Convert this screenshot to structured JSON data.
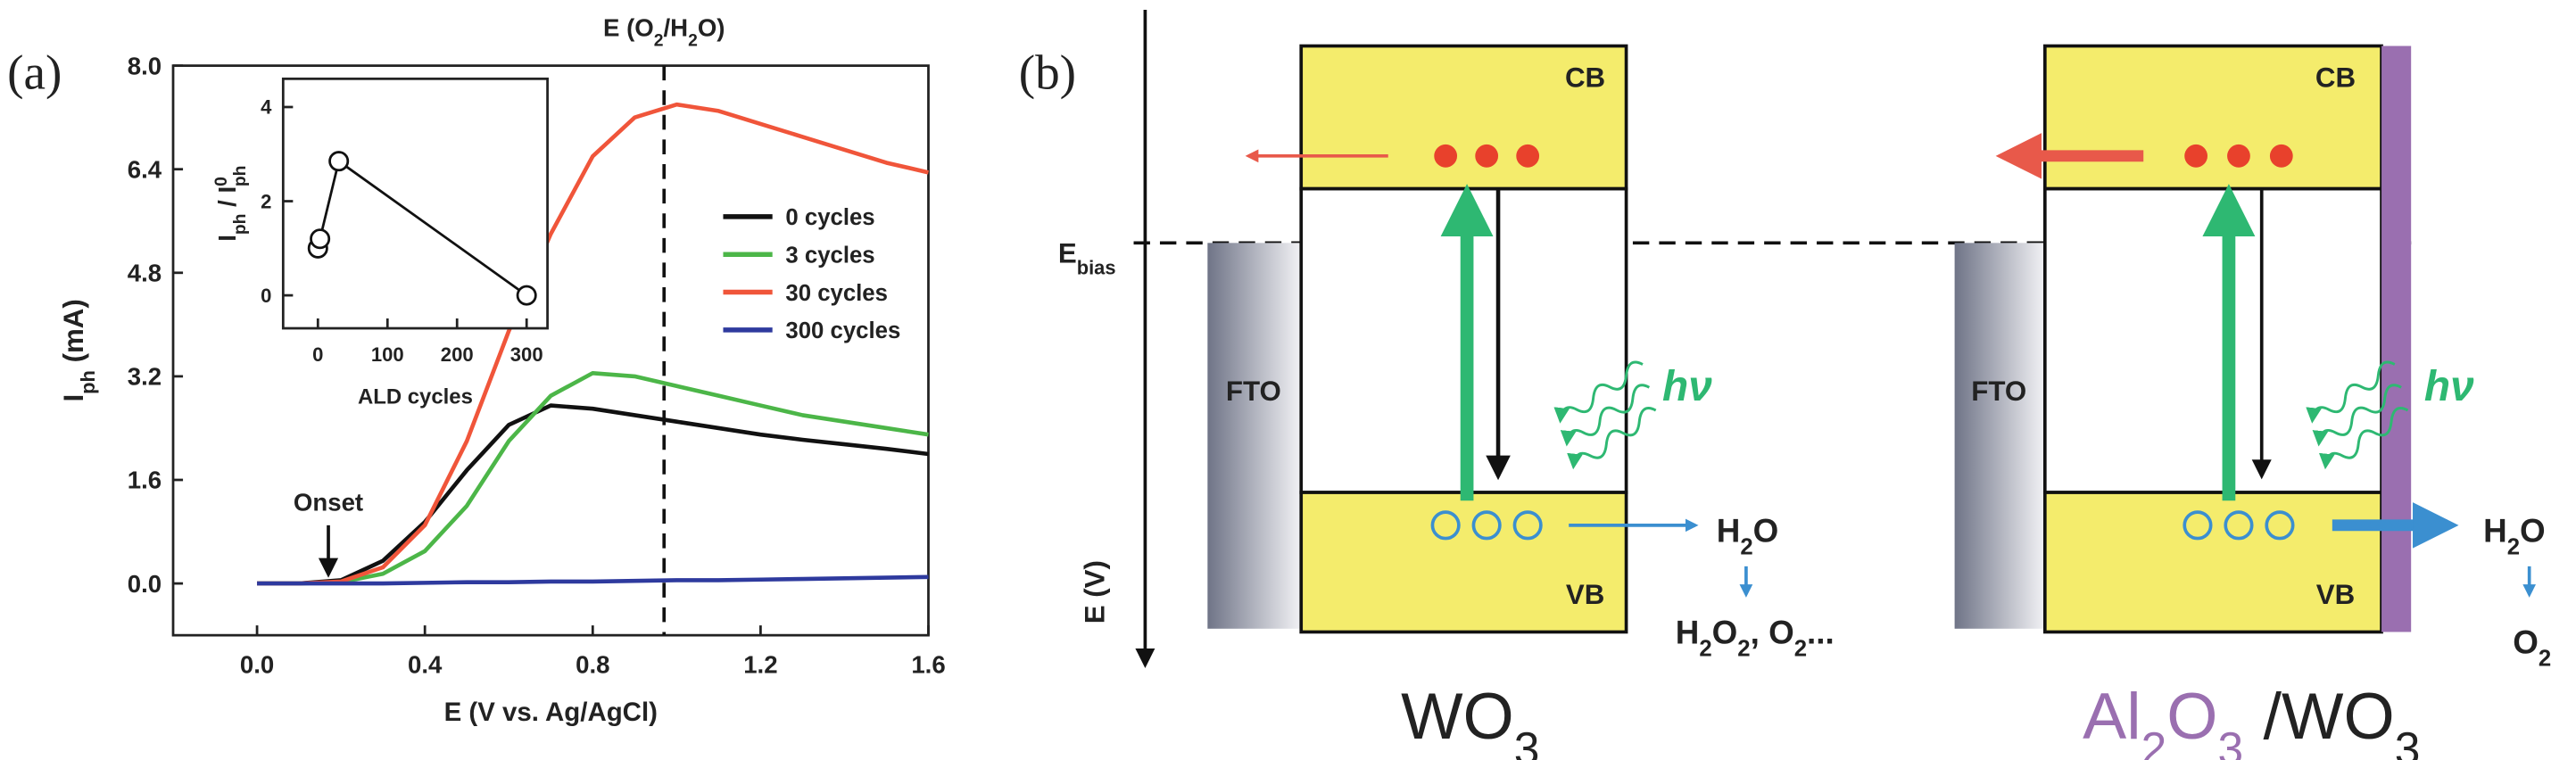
{
  "panel_labels": [
    "(a)",
    "(b)"
  ],
  "chart_data": [
    {
      "type": "line",
      "xlabel": "E (V vs. Ag/AgCl)",
      "ylabel": [
        "I",
        "ph",
        " (mA)"
      ],
      "x": [
        0,
        0.1,
        0.2,
        0.3,
        0.4,
        0.5,
        0.6,
        0.7,
        0.8,
        0.9,
        1.0,
        1.1,
        1.2,
        1.3,
        1.4,
        1.5,
        1.6
      ],
      "series": [
        {
          "name": "0 cycles",
          "color": "#111111",
          "values": [
            0,
            0,
            0.05,
            0.35,
            0.95,
            1.75,
            2.45,
            2.75,
            2.7,
            2.6,
            2.5,
            2.4,
            2.3,
            2.22,
            2.15,
            2.08,
            2.0
          ]
        },
        {
          "name": "3 cycles",
          "color": "#4cb648",
          "values": [
            0,
            0,
            0.02,
            0.15,
            0.5,
            1.2,
            2.2,
            2.9,
            3.25,
            3.2,
            3.05,
            2.9,
            2.75,
            2.6,
            2.5,
            2.4,
            2.3
          ]
        },
        {
          "name": "30 cycles",
          "color": "#f0553a",
          "values": [
            0,
            0,
            0.03,
            0.25,
            0.9,
            2.2,
            3.9,
            5.4,
            6.6,
            7.2,
            7.4,
            7.3,
            7.1,
            6.9,
            6.7,
            6.5,
            6.35
          ]
        },
        {
          "name": "300 cycles",
          "color": "#2e3a9e",
          "values": [
            0,
            0,
            0,
            0,
            0.01,
            0.02,
            0.02,
            0.03,
            0.03,
            0.04,
            0.05,
            0.05,
            0.06,
            0.07,
            0.08,
            0.09,
            0.1
          ]
        }
      ],
      "xlim": [
        -0.2,
        1.6
      ],
      "xticks": [
        {
          "value": 0,
          "label": "0.0"
        },
        0.4,
        0.8,
        1.2,
        1.6
      ],
      "ylim": [
        -0.8,
        8.0
      ],
      "yticks": [
        {
          "value": 0,
          "label": "0.0"
        },
        1.6,
        3.2,
        4.8,
        6.4,
        {
          "value": 8,
          "label": "8.0"
        }
      ],
      "annotations": [
        {
          "text": [
            "E (O",
            "2",
            "/H",
            "2",
            "O)"
          ],
          "x": 0.97
        },
        {
          "text": "Onset",
          "x": 0.17
        }
      ],
      "legend": "right"
    },
    {
      "type": "line",
      "xlabel": "ALD cycles",
      "ylabel": [
        "I",
        "ph",
        " / I",
        "ph"
      ],
      "ylabel_sup": "0",
      "x": [
        0,
        3,
        30,
        300
      ],
      "values": [
        1.0,
        1.2,
        2.85,
        0
      ],
      "color": "#111111",
      "markers": true,
      "xlim": [
        -50,
        330
      ],
      "xticks": [
        0,
        100,
        200,
        300
      ],
      "ylim": [
        -0.7,
        4.6
      ],
      "yticks": [
        0,
        2,
        4
      ]
    }
  ],
  "diagram": {
    "axis_label": "E (V)",
    "bias_label": [
      "E",
      "bias"
    ],
    "left": {
      "cb": "CB",
      "vb": "VB",
      "fto": "FTO",
      "photon": "hν",
      "water": [
        "H",
        "2",
        "O"
      ],
      "products": [
        "H",
        "2",
        "O",
        "2",
        ", O",
        "2",
        "..."
      ],
      "name": [
        "WO",
        "3"
      ]
    },
    "right": {
      "cb": "CB",
      "vb": "VB",
      "fto": "FTO",
      "photon": "hν",
      "water": [
        "H",
        "2",
        "O"
      ],
      "products": [
        "O",
        "2"
      ],
      "name_a": [
        "Al",
        "2",
        "O",
        "3"
      ],
      "name_b": [
        "/WO",
        "3"
      ]
    }
  }
}
